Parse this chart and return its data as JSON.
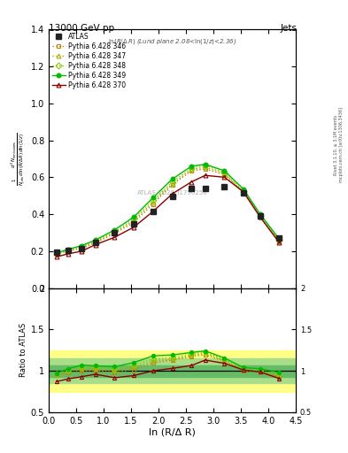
{
  "title": "13000 GeV pp",
  "title_right": "Jets",
  "xlabel": "ln (R/Δ R)",
  "subplot_title": "ln(R/Δ R) (Lund plane 2.08<ln(1/z)<2.36)",
  "watermark": "ATLAS_2020_I1790256",
  "right_label": "Rivet 3.1.10, ≥ 3.1M events",
  "right_label2": "mcplots.cern.ch [arXiv:1306.3436]",
  "ylim_main": [
    0.0,
    1.4
  ],
  "ylim_ratio": [
    0.5,
    2.0
  ],
  "xlim": [
    0.0,
    4.5
  ],
  "atlas_x": [
    0.15,
    0.35,
    0.6,
    0.85,
    1.2,
    1.55,
    1.9,
    2.25,
    2.6,
    2.85,
    3.2,
    3.55,
    3.85,
    4.2
  ],
  "atlas_y": [
    0.195,
    0.205,
    0.215,
    0.245,
    0.3,
    0.35,
    0.415,
    0.495,
    0.54,
    0.54,
    0.55,
    0.515,
    0.39,
    0.27
  ],
  "p346_x": [
    0.15,
    0.35,
    0.6,
    0.85,
    1.2,
    1.55,
    1.9,
    2.25,
    2.6,
    2.85,
    3.2,
    3.55,
    3.85,
    4.2
  ],
  "p346_y": [
    0.185,
    0.2,
    0.215,
    0.245,
    0.295,
    0.355,
    0.455,
    0.56,
    0.635,
    0.645,
    0.615,
    0.515,
    0.385,
    0.25
  ],
  "p347_x": [
    0.15,
    0.35,
    0.6,
    0.85,
    1.2,
    1.55,
    1.9,
    2.25,
    2.6,
    2.85,
    3.2,
    3.55,
    3.85,
    4.2
  ],
  "p347_y": [
    0.185,
    0.205,
    0.22,
    0.25,
    0.3,
    0.365,
    0.465,
    0.565,
    0.64,
    0.655,
    0.62,
    0.52,
    0.385,
    0.255
  ],
  "p348_x": [
    0.15,
    0.35,
    0.6,
    0.85,
    1.2,
    1.55,
    1.9,
    2.25,
    2.6,
    2.85,
    3.2,
    3.55,
    3.85,
    4.2
  ],
  "p348_y": [
    0.19,
    0.205,
    0.225,
    0.255,
    0.305,
    0.375,
    0.475,
    0.575,
    0.648,
    0.665,
    0.625,
    0.525,
    0.39,
    0.26
  ],
  "p349_x": [
    0.15,
    0.35,
    0.6,
    0.85,
    1.2,
    1.55,
    1.9,
    2.25,
    2.6,
    2.85,
    3.2,
    3.55,
    3.85,
    4.2
  ],
  "p349_y": [
    0.19,
    0.21,
    0.23,
    0.26,
    0.315,
    0.385,
    0.49,
    0.59,
    0.66,
    0.67,
    0.635,
    0.535,
    0.4,
    0.265
  ],
  "p370_x": [
    0.15,
    0.35,
    0.6,
    0.85,
    1.2,
    1.55,
    1.9,
    2.25,
    2.6,
    2.85,
    3.2,
    3.55,
    3.85,
    4.2
  ],
  "p370_y": [
    0.17,
    0.185,
    0.2,
    0.235,
    0.275,
    0.33,
    0.415,
    0.51,
    0.575,
    0.61,
    0.6,
    0.52,
    0.385,
    0.245
  ],
  "atlas_color": "#222222",
  "p346_color": "#b8860b",
  "p347_color": "#aaaa00",
  "p348_color": "#88cc00",
  "p349_color": "#00bb00",
  "p370_color": "#8b0000",
  "band_yellow": [
    0.75,
    1.25
  ],
  "band_green_mid": [
    0.85,
    1.15
  ],
  "band_green_inner": [
    0.93,
    1.07
  ],
  "ratio_346": [
    0.949,
    0.976,
    1.0,
    1.0,
    0.983,
    1.014,
    1.096,
    1.131,
    1.176,
    1.194,
    1.118,
    1.0,
    0.987,
    0.926
  ],
  "ratio_347": [
    0.949,
    1.0,
    1.023,
    1.02,
    1.0,
    1.043,
    1.12,
    1.141,
    1.185,
    1.213,
    1.127,
    1.01,
    0.987,
    0.944
  ],
  "ratio_348": [
    0.974,
    1.0,
    1.047,
    1.041,
    1.017,
    1.071,
    1.145,
    1.162,
    1.2,
    1.231,
    1.136,
    1.02,
    1.0,
    0.963
  ],
  "ratio_349": [
    0.974,
    1.024,
    1.07,
    1.061,
    1.05,
    1.1,
    1.181,
    1.192,
    1.222,
    1.241,
    1.155,
    1.039,
    1.026,
    0.981
  ],
  "ratio_370": [
    0.872,
    0.902,
    0.93,
    0.959,
    0.917,
    0.943,
    1.0,
    1.03,
    1.065,
    1.13,
    1.091,
    1.01,
    0.987,
    0.907
  ]
}
